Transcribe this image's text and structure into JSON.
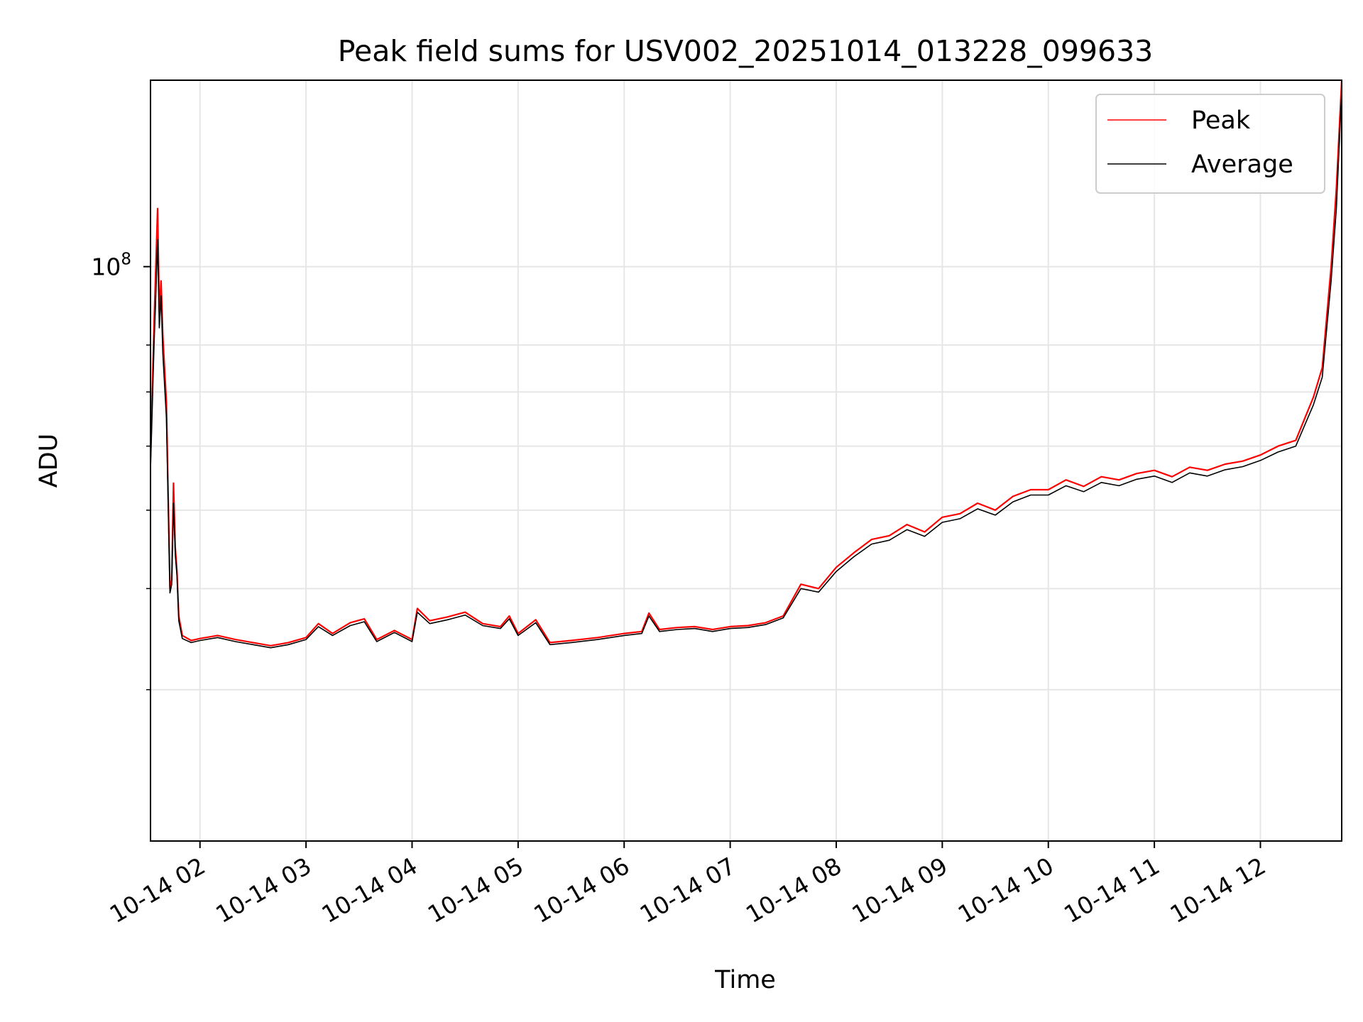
{
  "chart_data": {
    "type": "line",
    "title": "Peak field sums for USV002_20251014_013228_099633",
    "xlabel": "Time",
    "ylabel": "ADU",
    "y_scale": "log",
    "xlim": [
      "2025-10-14 01:32",
      "2025-10-14 12:46"
    ],
    "ylim": [
      19500000,
      170000000
    ],
    "x_ticks": [
      "10-14 02",
      "10-14 03",
      "10-14 04",
      "10-14 05",
      "10-14 06",
      "10-14 07",
      "10-14 08",
      "10-14 09",
      "10-14 10",
      "10-14 11",
      "10-14 12"
    ],
    "x_tick_times": [
      "2025-10-14 02:00",
      "2025-10-14 03:00",
      "2025-10-14 04:00",
      "2025-10-14 05:00",
      "2025-10-14 06:00",
      "2025-10-14 07:00",
      "2025-10-14 08:00",
      "2025-10-14 09:00",
      "2025-10-14 10:00",
      "2025-10-14 11:00",
      "2025-10-14 12:00"
    ],
    "y_ticks": [
      {
        "value": 100000000,
        "label": "10",
        "exponent": "8"
      }
    ],
    "y_minor_ticks": [
      30000000,
      40000000,
      50000000,
      60000000,
      70000000,
      80000000
    ],
    "grid": true,
    "legend_position": "top-right",
    "series": [
      {
        "name": "Peak",
        "color": "#ff0000",
        "points": [
          [
            "2025-10-14 01:32",
            58000000
          ],
          [
            "2025-10-14 01:34",
            85000000
          ],
          [
            "2025-10-14 01:35",
            100000000
          ],
          [
            "2025-10-14 01:36",
            118000000
          ],
          [
            "2025-10-14 01:37",
            88000000
          ],
          [
            "2025-10-14 01:38",
            96000000
          ],
          [
            "2025-10-14 01:39",
            82000000
          ],
          [
            "2025-10-14 01:41",
            68000000
          ],
          [
            "2025-10-14 01:43",
            40000000
          ],
          [
            "2025-10-14 01:44",
            41000000
          ],
          [
            "2025-10-14 01:45",
            54000000
          ],
          [
            "2025-10-14 01:46",
            45000000
          ],
          [
            "2025-10-14 01:47",
            42000000
          ],
          [
            "2025-10-14 01:48",
            37000000
          ],
          [
            "2025-10-14 01:50",
            35000000
          ],
          [
            "2025-10-14 01:55",
            34500000
          ],
          [
            "2025-10-14 02:00",
            34700000
          ],
          [
            "2025-10-14 02:10",
            35000000
          ],
          [
            "2025-10-14 02:20",
            34600000
          ],
          [
            "2025-10-14 02:30",
            34300000
          ],
          [
            "2025-10-14 02:40",
            34000000
          ],
          [
            "2025-10-14 02:50",
            34300000
          ],
          [
            "2025-10-14 03:00",
            34800000
          ],
          [
            "2025-10-14 03:07",
            36200000
          ],
          [
            "2025-10-14 03:15",
            35200000
          ],
          [
            "2025-10-14 03:25",
            36300000
          ],
          [
            "2025-10-14 03:33",
            36700000
          ],
          [
            "2025-10-14 03:40",
            34600000
          ],
          [
            "2025-10-14 03:50",
            35500000
          ],
          [
            "2025-10-14 04:00",
            34600000
          ],
          [
            "2025-10-14 04:03",
            37800000
          ],
          [
            "2025-10-14 04:10",
            36500000
          ],
          [
            "2025-10-14 04:20",
            36900000
          ],
          [
            "2025-10-14 04:30",
            37400000
          ],
          [
            "2025-10-14 04:40",
            36200000
          ],
          [
            "2025-10-14 04:50",
            35900000
          ],
          [
            "2025-10-14 04:55",
            37000000
          ],
          [
            "2025-10-14 05:00",
            35200000
          ],
          [
            "2025-10-14 05:10",
            36600000
          ],
          [
            "2025-10-14 05:18",
            34300000
          ],
          [
            "2025-10-14 05:30",
            34500000
          ],
          [
            "2025-10-14 05:45",
            34800000
          ],
          [
            "2025-10-14 06:00",
            35200000
          ],
          [
            "2025-10-14 06:10",
            35400000
          ],
          [
            "2025-10-14 06:14",
            37300000
          ],
          [
            "2025-10-14 06:20",
            35600000
          ],
          [
            "2025-10-14 06:30",
            35800000
          ],
          [
            "2025-10-14 06:40",
            35900000
          ],
          [
            "2025-10-14 06:50",
            35600000
          ],
          [
            "2025-10-14 07:00",
            35900000
          ],
          [
            "2025-10-14 07:10",
            36000000
          ],
          [
            "2025-10-14 07:20",
            36300000
          ],
          [
            "2025-10-14 07:30",
            37000000
          ],
          [
            "2025-10-14 07:40",
            40500000
          ],
          [
            "2025-10-14 07:50",
            40000000
          ],
          [
            "2025-10-14 08:00",
            42500000
          ],
          [
            "2025-10-14 08:10",
            44300000
          ],
          [
            "2025-10-14 08:20",
            46000000
          ],
          [
            "2025-10-14 08:30",
            46500000
          ],
          [
            "2025-10-14 08:40",
            48000000
          ],
          [
            "2025-10-14 08:50",
            47000000
          ],
          [
            "2025-10-14 09:00",
            49000000
          ],
          [
            "2025-10-14 09:10",
            49500000
          ],
          [
            "2025-10-14 09:20",
            51000000
          ],
          [
            "2025-10-14 09:30",
            50000000
          ],
          [
            "2025-10-14 09:40",
            52000000
          ],
          [
            "2025-10-14 09:50",
            53000000
          ],
          [
            "2025-10-14 10:00",
            53000000
          ],
          [
            "2025-10-14 10:10",
            54500000
          ],
          [
            "2025-10-14 10:20",
            53500000
          ],
          [
            "2025-10-14 10:30",
            55000000
          ],
          [
            "2025-10-14 10:40",
            54500000
          ],
          [
            "2025-10-14 10:50",
            55500000
          ],
          [
            "2025-10-14 11:00",
            56000000
          ],
          [
            "2025-10-14 11:10",
            55000000
          ],
          [
            "2025-10-14 11:20",
            56500000
          ],
          [
            "2025-10-14 11:30",
            56000000
          ],
          [
            "2025-10-14 11:40",
            57000000
          ],
          [
            "2025-10-14 11:50",
            57500000
          ],
          [
            "2025-10-14 12:00",
            58500000
          ],
          [
            "2025-10-14 12:10",
            60000000
          ],
          [
            "2025-10-14 12:20",
            61000000
          ],
          [
            "2025-10-14 12:30",
            69000000
          ],
          [
            "2025-10-14 12:35",
            75000000
          ],
          [
            "2025-10-14 12:40",
            100000000
          ],
          [
            "2025-10-14 12:43",
            125000000
          ],
          [
            "2025-10-14 12:46",
            170000000
          ]
        ]
      },
      {
        "name": "Average",
        "color": "#000000",
        "points": [
          [
            "2025-10-14 01:32",
            56000000
          ],
          [
            "2025-10-14 01:34",
            80000000
          ],
          [
            "2025-10-14 01:35",
            92000000
          ],
          [
            "2025-10-14 01:36",
            108000000
          ],
          [
            "2025-10-14 01:37",
            84000000
          ],
          [
            "2025-10-14 01:38",
            92000000
          ],
          [
            "2025-10-14 01:39",
            78000000
          ],
          [
            "2025-10-14 01:41",
            65000000
          ],
          [
            "2025-10-14 01:43",
            39500000
          ],
          [
            "2025-10-14 01:44",
            40500000
          ],
          [
            "2025-10-14 01:45",
            51000000
          ],
          [
            "2025-10-14 01:46",
            44000000
          ],
          [
            "2025-10-14 01:47",
            41500000
          ],
          [
            "2025-10-14 01:48",
            36500000
          ],
          [
            "2025-10-14 01:50",
            34700000
          ],
          [
            "2025-10-14 01:55",
            34300000
          ],
          [
            "2025-10-14 02:00",
            34500000
          ],
          [
            "2025-10-14 02:10",
            34800000
          ],
          [
            "2025-10-14 02:20",
            34400000
          ],
          [
            "2025-10-14 02:30",
            34100000
          ],
          [
            "2025-10-14 02:40",
            33800000
          ],
          [
            "2025-10-14 02:50",
            34100000
          ],
          [
            "2025-10-14 03:00",
            34600000
          ],
          [
            "2025-10-14 03:07",
            35900000
          ],
          [
            "2025-10-14 03:15",
            35000000
          ],
          [
            "2025-10-14 03:25",
            36000000
          ],
          [
            "2025-10-14 03:33",
            36400000
          ],
          [
            "2025-10-14 03:40",
            34400000
          ],
          [
            "2025-10-14 03:50",
            35300000
          ],
          [
            "2025-10-14 04:00",
            34400000
          ],
          [
            "2025-10-14 04:03",
            37400000
          ],
          [
            "2025-10-14 04:10",
            36200000
          ],
          [
            "2025-10-14 04:20",
            36600000
          ],
          [
            "2025-10-14 04:30",
            37100000
          ],
          [
            "2025-10-14 04:40",
            36000000
          ],
          [
            "2025-10-14 04:50",
            35700000
          ],
          [
            "2025-10-14 04:55",
            36700000
          ],
          [
            "2025-10-14 05:00",
            35000000
          ],
          [
            "2025-10-14 05:10",
            36300000
          ],
          [
            "2025-10-14 05:18",
            34100000
          ],
          [
            "2025-10-14 05:30",
            34300000
          ],
          [
            "2025-10-14 05:45",
            34600000
          ],
          [
            "2025-10-14 06:00",
            35000000
          ],
          [
            "2025-10-14 06:10",
            35200000
          ],
          [
            "2025-10-14 06:14",
            37000000
          ],
          [
            "2025-10-14 06:20",
            35400000
          ],
          [
            "2025-10-14 06:30",
            35600000
          ],
          [
            "2025-10-14 06:40",
            35700000
          ],
          [
            "2025-10-14 06:50",
            35400000
          ],
          [
            "2025-10-14 07:00",
            35700000
          ],
          [
            "2025-10-14 07:10",
            35800000
          ],
          [
            "2025-10-14 07:20",
            36100000
          ],
          [
            "2025-10-14 07:30",
            36800000
          ],
          [
            "2025-10-14 07:40",
            40000000
          ],
          [
            "2025-10-14 07:50",
            39600000
          ],
          [
            "2025-10-14 08:00",
            42000000
          ],
          [
            "2025-10-14 08:10",
            43800000
          ],
          [
            "2025-10-14 08:20",
            45400000
          ],
          [
            "2025-10-14 08:30",
            45900000
          ],
          [
            "2025-10-14 08:40",
            47300000
          ],
          [
            "2025-10-14 08:50",
            46400000
          ],
          [
            "2025-10-14 09:00",
            48300000
          ],
          [
            "2025-10-14 09:10",
            48800000
          ],
          [
            "2025-10-14 09:20",
            50200000
          ],
          [
            "2025-10-14 09:30",
            49300000
          ],
          [
            "2025-10-14 09:40",
            51200000
          ],
          [
            "2025-10-14 09:50",
            52200000
          ],
          [
            "2025-10-14 10:00",
            52200000
          ],
          [
            "2025-10-14 10:10",
            53600000
          ],
          [
            "2025-10-14 10:20",
            52700000
          ],
          [
            "2025-10-14 10:30",
            54100000
          ],
          [
            "2025-10-14 10:40",
            53600000
          ],
          [
            "2025-10-14 10:50",
            54600000
          ],
          [
            "2025-10-14 11:00",
            55100000
          ],
          [
            "2025-10-14 11:10",
            54100000
          ],
          [
            "2025-10-14 11:20",
            55600000
          ],
          [
            "2025-10-14 11:30",
            55100000
          ],
          [
            "2025-10-14 11:40",
            56100000
          ],
          [
            "2025-10-14 11:50",
            56600000
          ],
          [
            "2025-10-14 12:00",
            57600000
          ],
          [
            "2025-10-14 12:10",
            59000000
          ],
          [
            "2025-10-14 12:20",
            60000000
          ],
          [
            "2025-10-14 12:30",
            67500000
          ],
          [
            "2025-10-14 12:35",
            73000000
          ],
          [
            "2025-10-14 12:40",
            96000000
          ],
          [
            "2025-10-14 12:43",
            118000000
          ],
          [
            "2025-10-14 12:46",
            165000000
          ]
        ]
      }
    ]
  }
}
